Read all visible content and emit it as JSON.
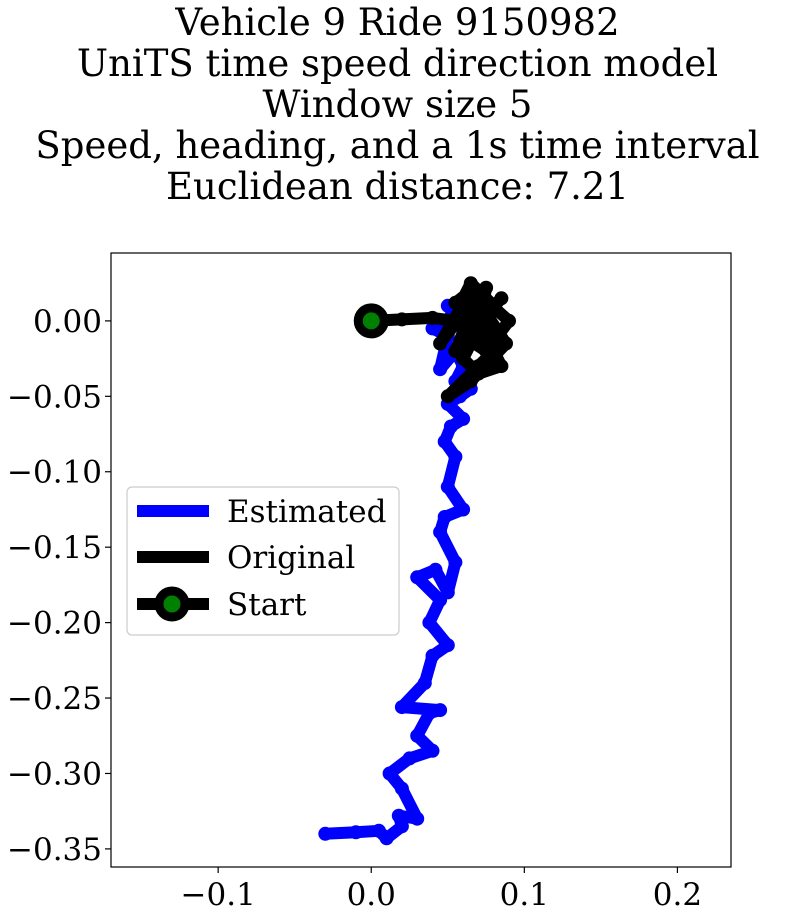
{
  "chart_data": {
    "type": "line",
    "title_lines": [
      "Vehicle 9 Ride 9150982",
      "UniTS time speed direction model",
      "Window size 5",
      "Speed, heading, and a 1s time interval",
      "Euclidean distance: 7.21"
    ],
    "xlabel": "",
    "ylabel": "",
    "xlim": [
      -0.17,
      0.235
    ],
    "ylim": [
      -0.362,
      0.045
    ],
    "x_ticks": [
      -0.1,
      0.0,
      0.1,
      0.2
    ],
    "x_tick_labels": [
      "−0.1",
      "0.0",
      "0.1",
      "0.2"
    ],
    "y_ticks": [
      0.0,
      -0.05,
      -0.1,
      -0.15,
      -0.2,
      -0.25,
      -0.3,
      -0.35
    ],
    "y_tick_labels": [
      "0.00",
      "−0.05",
      "−0.10",
      "−0.15",
      "−0.20",
      "−0.25",
      "−0.30",
      "−0.35"
    ],
    "grid": false,
    "legend_position": "center-left",
    "series": [
      {
        "name": "Estimated",
        "color": "#0000ff",
        "x": [
          -0.03,
          -0.01,
          0.005,
          0.01,
          0.02,
          0.018,
          0.03,
          0.02,
          0.012,
          0.025,
          0.04,
          0.03,
          0.038,
          0.045,
          0.02,
          0.035,
          0.04,
          0.05,
          0.038,
          0.045,
          0.03,
          0.042,
          0.05,
          0.055,
          0.045,
          0.048,
          0.06,
          0.05,
          0.055,
          0.048,
          0.052,
          0.06,
          0.05,
          0.058,
          0.065,
          0.055,
          0.06,
          0.055,
          0.045,
          0.05,
          0.04,
          0.048,
          0.055,
          0.05,
          0.06,
          0.055,
          0.065,
          0.07,
          0.06
        ],
        "y": [
          -0.34,
          -0.339,
          -0.338,
          -0.343,
          -0.335,
          -0.328,
          -0.33,
          -0.31,
          -0.3,
          -0.29,
          -0.285,
          -0.275,
          -0.26,
          -0.258,
          -0.256,
          -0.24,
          -0.222,
          -0.215,
          -0.2,
          -0.185,
          -0.17,
          -0.165,
          -0.18,
          -0.16,
          -0.14,
          -0.13,
          -0.125,
          -0.11,
          -0.09,
          -0.08,
          -0.07,
          -0.065,
          -0.055,
          -0.05,
          -0.045,
          -0.04,
          -0.03,
          -0.02,
          -0.032,
          -0.01,
          -0.005,
          0.0,
          0.005,
          0.01,
          -0.005,
          0.0,
          0.0,
          -0.01,
          -0.02
        ]
      },
      {
        "name": "Original",
        "color": "#000000",
        "x": [
          0.0,
          0.02,
          0.04,
          0.055,
          0.06,
          0.065,
          0.07,
          0.08,
          0.072,
          0.085,
          0.06,
          0.075,
          0.09,
          0.07,
          0.055,
          0.08,
          0.065,
          0.085,
          0.07,
          0.06,
          0.075,
          0.088,
          0.065,
          0.05,
          0.07,
          0.08,
          0.06,
          0.045,
          0.065,
          0.055,
          0.07,
          0.075,
          0.068
        ],
        "y": [
          0.0,
          0.001,
          0.002,
          0.0,
          0.015,
          0.025,
          0.02,
          0.01,
          0.0,
          0.015,
          -0.01,
          -0.02,
          0.0,
          0.018,
          -0.02,
          -0.005,
          0.01,
          -0.03,
          -0.035,
          -0.025,
          0.005,
          -0.015,
          -0.04,
          -0.05,
          -0.03,
          -0.02,
          0.005,
          -0.015,
          0.02,
          0.012,
          -0.008,
          0.022,
          0.003
        ]
      }
    ],
    "start_marker": {
      "name": "Start",
      "x": 0.0,
      "y": 0.0,
      "color": "#008000"
    },
    "legend_entries": [
      "Estimated",
      "Original",
      "Start"
    ]
  }
}
